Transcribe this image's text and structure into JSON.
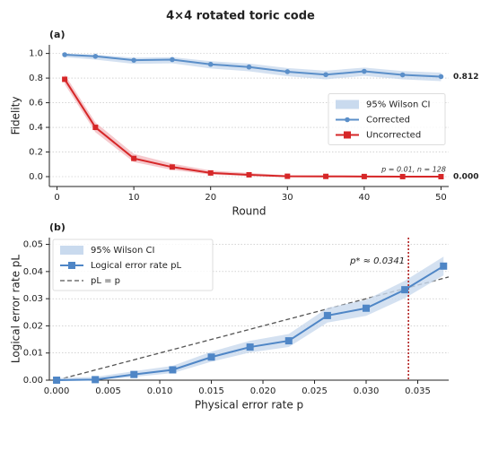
{
  "title": "4×4 rotated toric code",
  "chart_data": [
    {
      "type": "line",
      "panel_label": "(a)",
      "xlabel": "Round",
      "ylabel": "Fidelity",
      "x": [
        1,
        5,
        10,
        15,
        20,
        25,
        30,
        35,
        40,
        45,
        50
      ],
      "xlim": [
        -1,
        51
      ],
      "xticks": [
        0,
        10,
        20,
        30,
        40,
        50
      ],
      "ylim": [
        -0.08,
        1.07
      ],
      "yticks": [
        {
          "value": 0,
          "label": "0.0"
        },
        {
          "value": 0.2,
          "label": "0.2"
        },
        {
          "value": 0.4,
          "label": "0.4"
        },
        {
          "value": 0.6,
          "label": "0.6"
        },
        {
          "value": 0.8,
          "label": "0.8"
        },
        {
          "value": 1,
          "label": "1.0"
        }
      ],
      "grid": true,
      "legend": "center right",
      "ci_label": "95% Wilson CI",
      "annotation": "p = 0.01, n = 128",
      "series": [
        {
          "name": "Corrected",
          "color": "#5b8fc9",
          "band_color": "#c9daee",
          "marker": "circle",
          "values": [
            0.99,
            0.977,
            0.945,
            0.95,
            0.912,
            0.89,
            0.852,
            0.828,
            0.855,
            0.826,
            0.812
          ],
          "ci_lower": [
            0.97,
            0.95,
            0.915,
            0.92,
            0.878,
            0.855,
            0.815,
            0.79,
            0.818,
            0.79,
            0.775
          ],
          "ci_upper": [
            0.997,
            0.99,
            0.965,
            0.97,
            0.937,
            0.918,
            0.882,
            0.86,
            0.885,
            0.857,
            0.844
          ],
          "end_label": "0.812"
        },
        {
          "name": "Uncorrected",
          "color": "#d62728",
          "band_color": "#f3bcc0",
          "marker": "square",
          "values": [
            0.79,
            0.4,
            0.148,
            0.078,
            0.03,
            0.015,
            0.003,
            0.002,
            0.001,
            0.0005,
            0
          ],
          "ci_lower": [
            0.75,
            0.36,
            0.118,
            0.055,
            0.016,
            0.006,
            0,
            0,
            0,
            0,
            0
          ],
          "ci_upper": [
            0.83,
            0.44,
            0.185,
            0.106,
            0.05,
            0.03,
            0.012,
            0.01,
            0.008,
            0.007,
            0.006
          ],
          "end_label": "0.000"
        }
      ]
    },
    {
      "type": "line",
      "panel_label": "(b)",
      "xlabel": "Physical error rate p",
      "ylabel": "Logical error rate pL",
      "x": [
        0,
        0.00375,
        0.0075,
        0.01125,
        0.015,
        0.01875,
        0.0225,
        0.02625,
        0.03,
        0.03375,
        0.0375
      ],
      "xlim": [
        -0.0007,
        0.038
      ],
      "xticks": [
        {
          "value": 0,
          "label": "0.000"
        },
        {
          "value": 0.005,
          "label": "0.005"
        },
        {
          "value": 0.01,
          "label": "0.010"
        },
        {
          "value": 0.015,
          "label": "0.015"
        },
        {
          "value": 0.02,
          "label": "0.020"
        },
        {
          "value": 0.025,
          "label": "0.025"
        },
        {
          "value": 0.03,
          "label": "0.030"
        },
        {
          "value": 0.035,
          "label": "0.035"
        }
      ],
      "ylim": [
        0,
        0.0525
      ],
      "yticks": [
        {
          "value": 0,
          "label": "0.00"
        },
        {
          "value": 0.01,
          "label": "0.01"
        },
        {
          "value": 0.02,
          "label": "0.02"
        },
        {
          "value": 0.03,
          "label": "0.03"
        },
        {
          "value": 0.04,
          "label": "0.04"
        },
        {
          "value": 0.05,
          "label": "0.05"
        }
      ],
      "grid": true,
      "legend": "upper left",
      "ci_label": "95% Wilson CI",
      "identity_line": {
        "name": "pL = p",
        "color": "#555555"
      },
      "vline": {
        "value": 0.0341,
        "label": "p* ≈ 0.0341",
        "color": "#b22222"
      },
      "series": [
        {
          "name": "Logical error rate pL",
          "color": "#4f86c6",
          "band_color": "#c9daee",
          "marker": "square",
          "values": [
            0,
            0.0002,
            0.0021,
            0.0038,
            0.0085,
            0.0122,
            0.0145,
            0.0238,
            0.0265,
            0.0333,
            0.042
          ],
          "ci_lower": [
            0,
            0,
            0.0012,
            0.0026,
            0.0068,
            0.0102,
            0.0122,
            0.0212,
            0.0237,
            0.0302,
            0.0386
          ],
          "ci_upper": [
            0.0008,
            0.0012,
            0.0033,
            0.0053,
            0.0105,
            0.0145,
            0.017,
            0.0266,
            0.0296,
            0.0366,
            0.0455
          ]
        }
      ]
    }
  ]
}
